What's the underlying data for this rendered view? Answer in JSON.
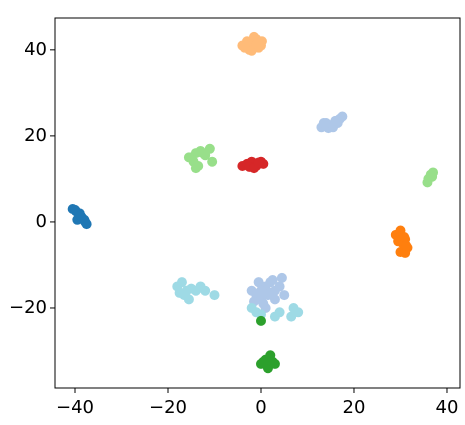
{
  "chart_data": {
    "type": "scatter",
    "xlim": [
      -44.3,
      42.8
    ],
    "ylim": [
      -38.6,
      47.4
    ],
    "xticks": [
      {
        "value": -40,
        "label": "−40"
      },
      {
        "value": -20,
        "label": "−20"
      },
      0,
      20,
      40
    ],
    "yticks": [
      {
        "value": -20,
        "label": "−20"
      },
      0,
      20,
      40
    ],
    "series": [
      {
        "color": "#1f77b4",
        "x": [
          -40.5,
          -39.8,
          -39,
          -38.5,
          -38,
          -37.5,
          -39.5,
          -40,
          -38.8,
          -37.8
        ],
        "y": [
          3,
          2.5,
          2,
          1,
          0.5,
          -0.5,
          0.5,
          2.8,
          1.5,
          0
        ]
      },
      {
        "color": "#ffbb78",
        "x": [
          -4,
          -3,
          -2,
          -1,
          0,
          -2.5,
          -1.5,
          -0.5,
          -3.5,
          -2,
          0.2,
          -1
        ],
        "y": [
          41,
          42,
          41.5,
          42.5,
          41,
          40,
          43,
          40.5,
          40.5,
          39.8,
          42,
          41.3
        ]
      },
      {
        "color": "#aec7e8",
        "x": [
          13,
          14,
          15,
          16,
          17,
          14.5,
          15.5,
          13.5,
          16.5,
          17.5,
          -2,
          -1,
          0,
          1,
          2,
          3,
          4,
          0.5,
          -0.5,
          1.5,
          2.5,
          -1.5,
          0,
          1,
          3,
          4.5,
          2,
          5
        ],
        "y": [
          22,
          23,
          22.5,
          23.5,
          24,
          21.8,
          22,
          23,
          23,
          24.5,
          -16,
          -17,
          -18,
          -15,
          -14,
          -16,
          -15,
          -19,
          -14,
          -17,
          -13.5,
          -18.5,
          -16,
          -20,
          -18,
          -13,
          -16.5,
          -17
        ]
      },
      {
        "color": "#98df8a",
        "x": [
          -15,
          -14,
          -13,
          -12,
          -11,
          -14.5,
          -13.5,
          -10.5,
          -12.5,
          -15.5,
          -14,
          36,
          36.5,
          37,
          35.8,
          36.8
        ],
        "y": [
          15,
          16,
          16.5,
          15.5,
          17,
          14,
          13,
          14,
          16,
          15,
          12.5,
          10,
          11,
          11.5,
          9.2,
          10.5
        ]
      },
      {
        "color": "#d62728",
        "x": [
          -4,
          -3,
          -2,
          -1,
          0,
          0.5,
          -2.5,
          -1.5,
          -0.5
        ],
        "y": [
          13,
          13.5,
          14,
          13,
          14,
          13.5,
          12.8,
          12.5,
          13.8
        ]
      },
      {
        "color": "#ff7f0e",
        "x": [
          29,
          30,
          31,
          30.5,
          31.5,
          29.5,
          30,
          31,
          30.8,
          31.2
        ],
        "y": [
          -3,
          -2,
          -4,
          -5,
          -6,
          -4.5,
          -7,
          -7.2,
          -3.5,
          -5.5
        ]
      },
      {
        "color": "#9edae5",
        "x": [
          -18,
          -17,
          -16,
          -15,
          -14,
          -16.5,
          -15.5,
          -17.5,
          -12,
          -10,
          -13,
          -1,
          0,
          3,
          7,
          8,
          6.5,
          4,
          -2
        ],
        "y": [
          -15,
          -14,
          -16,
          -15.5,
          -16,
          -17,
          -18,
          -16.5,
          -16,
          -17,
          -15,
          -21,
          -21.5,
          -22,
          -20,
          -21,
          -22,
          -21,
          -20
        ]
      },
      {
        "color": "#2ca02c",
        "x": [
          0,
          1,
          2,
          3,
          1.5,
          2.5,
          0.5,
          0
        ],
        "y": [
          -33,
          -32,
          -31,
          -33,
          -34,
          -32.5,
          -32.5,
          -23
        ]
      }
    ]
  }
}
